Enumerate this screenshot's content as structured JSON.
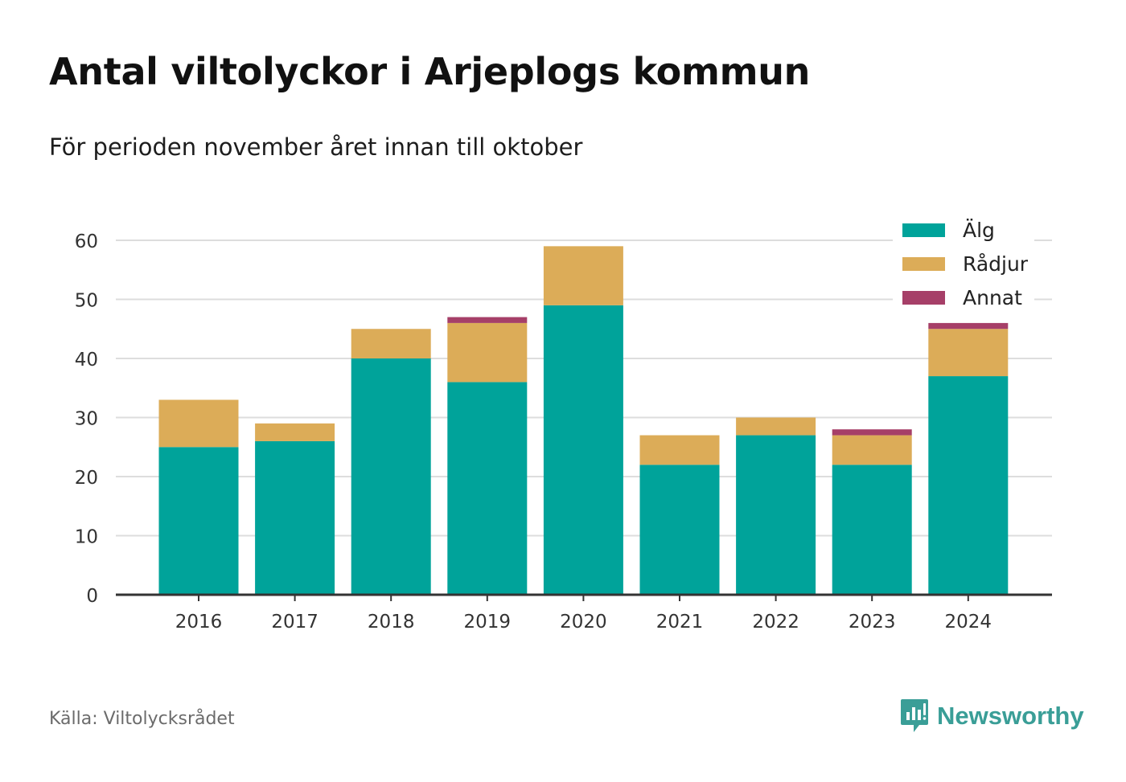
{
  "header": {
    "title": "Antal viltolyckor i Arjeplogs kommun",
    "subtitle": "För perioden november året innan till oktober"
  },
  "footer": {
    "source": "Källa: Viltolycksrådet",
    "brand": "Newsworthy"
  },
  "icons": {
    "brand_logo": "bar-chart-speech-bubble-icon"
  },
  "colors": {
    "brand": "#3a9e97",
    "gridline": "#dddddd",
    "axis": "#333333"
  },
  "chart_data": {
    "type": "bar",
    "stacked": true,
    "categories": [
      "2016",
      "2017",
      "2018",
      "2019",
      "2020",
      "2021",
      "2022",
      "2023",
      "2024"
    ],
    "series": [
      {
        "name": "Älg",
        "color": "#00a39a",
        "values": [
          25,
          26,
          40,
          36,
          49,
          22,
          27,
          22,
          37
        ]
      },
      {
        "name": "Rådjur",
        "color": "#dcac58",
        "values": [
          8,
          3,
          5,
          10,
          10,
          5,
          3,
          5,
          8
        ]
      },
      {
        "name": "Annat",
        "color": "#a63f68",
        "values": [
          0,
          0,
          0,
          1,
          0,
          0,
          0,
          1,
          1
        ]
      }
    ],
    "ylim": [
      0,
      60
    ],
    "yticks": [
      0,
      10,
      20,
      30,
      40,
      50,
      60
    ],
    "xlabel": "",
    "ylabel": "",
    "grid": true,
    "legend": "top-right"
  }
}
